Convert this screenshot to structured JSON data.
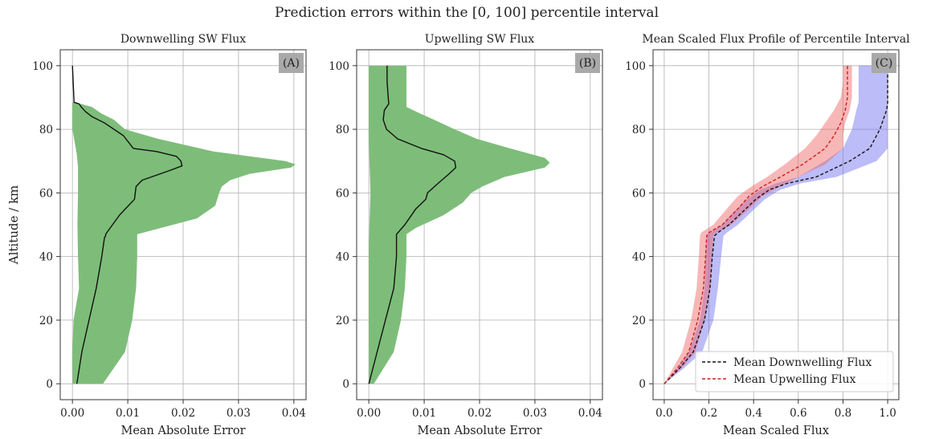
{
  "figure": {
    "suptitle": "Prediction errors within the [0, 100] percentile interval",
    "ylabel": "Altitude / km"
  },
  "chart_data": [
    {
      "type": "area",
      "title": "Downwelling SW Flux",
      "tag": "(A)",
      "xlabel": "Mean Absolute Error",
      "xlim": [
        -0.0022,
        0.0422
      ],
      "ylim": [
        -5,
        105
      ],
      "xticks": [
        0.0,
        0.01,
        0.02,
        0.03,
        0.04
      ],
      "xtick_labels": [
        "0.00",
        "0.01",
        "0.02",
        "0.03",
        "0.04"
      ],
      "yticks": [
        0,
        20,
        40,
        60,
        80,
        100
      ],
      "ytick_labels": [
        "0",
        "20",
        "40",
        "60",
        "80",
        "100"
      ],
      "grid": true,
      "colors": {
        "band": "#7dbd79",
        "line": "#111111"
      },
      "mean_line": {
        "name": "mean",
        "x": [
          0.0008,
          0.0017,
          0.003,
          0.0043,
          0.0053,
          0.0058,
          0.006,
          0.006,
          0.0085,
          0.0112,
          0.0115,
          0.0126,
          0.0175,
          0.0198,
          0.0196,
          0.0188,
          0.0152,
          0.011,
          0.0092,
          0.0058,
          0.0035,
          0.0024,
          0.0016,
          0.0012,
          0.0003,
          0.0
        ],
        "y": [
          0,
          10,
          20,
          30,
          40,
          46,
          46.5,
          47,
          53,
          58,
          62,
          64,
          67,
          68.5,
          70,
          71.5,
          73,
          74,
          78,
          82,
          84,
          85.5,
          87,
          88,
          88.5,
          100
        ]
      },
      "band_right": {
        "x": [
          0.0055,
          0.0095,
          0.0108,
          0.0115,
          0.0117,
          0.0117,
          0.0225,
          0.0258,
          0.0265,
          0.027,
          0.0285,
          0.032,
          0.0395,
          0.0403,
          0.0385,
          0.0255,
          0.0155,
          0.0095,
          0.0075,
          0.0052,
          0.0035,
          0.0015,
          0.0
        ],
        "y": [
          0,
          10,
          20,
          30,
          40,
          47,
          52,
          56,
          60,
          62,
          64,
          66,
          68,
          69,
          70,
          73,
          77,
          80,
          83,
          85,
          87,
          88,
          88.5
        ]
      },
      "band_left": {
        "x": [
          0.0,
          0.0,
          0.0008,
          0.001,
          0.001,
          0.001,
          0.0009,
          0.001,
          0.0012,
          0.0002,
          0.0,
          0.0,
          0.0
        ],
        "y": [
          88.5,
          80,
          72,
          68,
          64,
          60,
          50,
          40,
          30,
          20,
          10,
          3,
          0
        ]
      }
    },
    {
      "type": "area",
      "title": "Upwelling SW Flux",
      "tag": "(B)",
      "xlabel": "Mean Absolute Error",
      "xlim": [
        -0.0022,
        0.0422
      ],
      "ylim": [
        -5,
        105
      ],
      "xticks": [
        0.0,
        0.01,
        0.02,
        0.03,
        0.04
      ],
      "xtick_labels": [
        "0.00",
        "0.01",
        "0.02",
        "0.03",
        "0.04"
      ],
      "yticks": [
        0,
        20,
        40,
        60,
        80,
        100
      ],
      "ytick_labels": [
        "0",
        "20",
        "40",
        "60",
        "80",
        "100"
      ],
      "grid": true,
      "colors": {
        "band": "#7dbd79",
        "line": "#111111"
      },
      "mean_line": {
        "name": "mean",
        "x": [
          0.0,
          0.0015,
          0.003,
          0.0045,
          0.005,
          0.005,
          0.0065,
          0.0085,
          0.0103,
          0.0106,
          0.0125,
          0.0145,
          0.0157,
          0.0155,
          0.0135,
          0.0095,
          0.0052,
          0.0032,
          0.0026,
          0.0028,
          0.0036,
          0.0035,
          0.0033,
          0.0033
        ],
        "y": [
          0,
          10,
          20,
          30,
          40,
          47,
          50,
          55,
          58,
          60,
          63,
          66,
          68,
          70,
          72,
          74,
          77,
          80,
          83,
          86,
          88,
          90,
          95,
          100
        ]
      },
      "band_right": {
        "x": [
          0.0009,
          0.0045,
          0.0058,
          0.0065,
          0.0068,
          0.0068,
          0.0085,
          0.0135,
          0.017,
          0.0185,
          0.0205,
          0.0245,
          0.0318,
          0.0327,
          0.0318,
          0.0255,
          0.0195,
          0.0155,
          0.0118,
          0.0092,
          0.0068,
          0.0068,
          0.0068
        ],
        "y": [
          0,
          10,
          20,
          30,
          40,
          47,
          49,
          53,
          57,
          60,
          62,
          65,
          68,
          69.5,
          71,
          74,
          77,
          80,
          83,
          85,
          87,
          95,
          100
        ]
      },
      "band_left": {
        "x": [
          0.0,
          0.0,
          0.0,
          0.0001,
          0.0003,
          0.0001,
          0.0,
          0.0,
          0.0,
          0.0
        ],
        "y": [
          100,
          90,
          80,
          70,
          60,
          50,
          40,
          30,
          10,
          0
        ]
      }
    },
    {
      "type": "line",
      "title": "Mean Scaled Flux Profile of Percentile Interval",
      "tag": "(C)",
      "xlabel": "Mean Scaled Flux",
      "xlim": [
        -0.05,
        1.05
      ],
      "ylim": [
        -5,
        105
      ],
      "xticks": [
        0.0,
        0.2,
        0.4,
        0.6,
        0.8,
        1.0
      ],
      "xtick_labels": [
        "0.0",
        "0.2",
        "0.4",
        "0.6",
        "0.8",
        "1.0"
      ],
      "yticks": [
        0,
        20,
        40,
        60,
        80,
        100
      ],
      "ytick_labels": [
        "0",
        "20",
        "40",
        "60",
        "80",
        "100"
      ],
      "grid": true,
      "legend": {
        "loc": "lower-right"
      },
      "colors": {
        "down": "#6b6bf0",
        "up": "#f06060",
        "down_line": "#111111",
        "up_line": "#cc1f1f"
      },
      "series": [
        {
          "name": "Mean Downwelling Flux",
          "x": [
            0.0,
            0.07,
            0.13,
            0.18,
            0.205,
            0.215,
            0.225,
            0.24,
            0.29,
            0.35,
            0.41,
            0.47,
            0.55,
            0.68,
            0.83,
            0.92,
            0.965,
            0.995,
            1.0,
            1.0
          ],
          "y": [
            0,
            5,
            10,
            20,
            30,
            40,
            46.5,
            47.5,
            50,
            54,
            58,
            61,
            63,
            65,
            70,
            74,
            80,
            86,
            88.5,
            100
          ],
          "band_low": [
            0.0,
            0.06,
            0.11,
            0.16,
            0.18,
            0.185,
            0.19,
            0.2,
            0.26,
            0.31,
            0.37,
            0.43,
            0.5,
            0.6,
            0.72,
            0.8,
            0.84,
            0.86,
            0.87,
            0.87
          ],
          "band_high": [
            0.0,
            0.09,
            0.17,
            0.22,
            0.24,
            0.255,
            0.265,
            0.28,
            0.33,
            0.39,
            0.45,
            0.52,
            0.61,
            0.77,
            0.95,
            1.0,
            1.0,
            1.0,
            1.0,
            1.0
          ]
        },
        {
          "name": "Mean Upwelling Flux",
          "x": [
            0.0,
            0.06,
            0.11,
            0.15,
            0.175,
            0.185,
            0.19,
            0.2,
            0.26,
            0.33,
            0.38,
            0.44,
            0.52,
            0.62,
            0.72,
            0.76,
            0.79,
            0.81,
            0.82,
            0.82,
            0.82
          ],
          "y": [
            0,
            5,
            10,
            20,
            30,
            40,
            46.5,
            47.5,
            50,
            55,
            59,
            62,
            65,
            69,
            74,
            78,
            82,
            86,
            90,
            95,
            100
          ],
          "band_low": [
            0.0,
            0.04,
            0.08,
            0.12,
            0.145,
            0.155,
            0.16,
            0.165,
            0.22,
            0.28,
            0.33,
            0.39,
            0.46,
            0.54,
            0.63,
            0.68,
            0.72,
            0.76,
            0.79,
            0.8,
            0.8
          ],
          "band_high": [
            0.0,
            0.08,
            0.14,
            0.18,
            0.205,
            0.215,
            0.22,
            0.235,
            0.3,
            0.38,
            0.44,
            0.52,
            0.6,
            0.72,
            0.8,
            0.8,
            0.81,
            0.83,
            0.84,
            0.84,
            0.84
          ]
        }
      ]
    }
  ]
}
